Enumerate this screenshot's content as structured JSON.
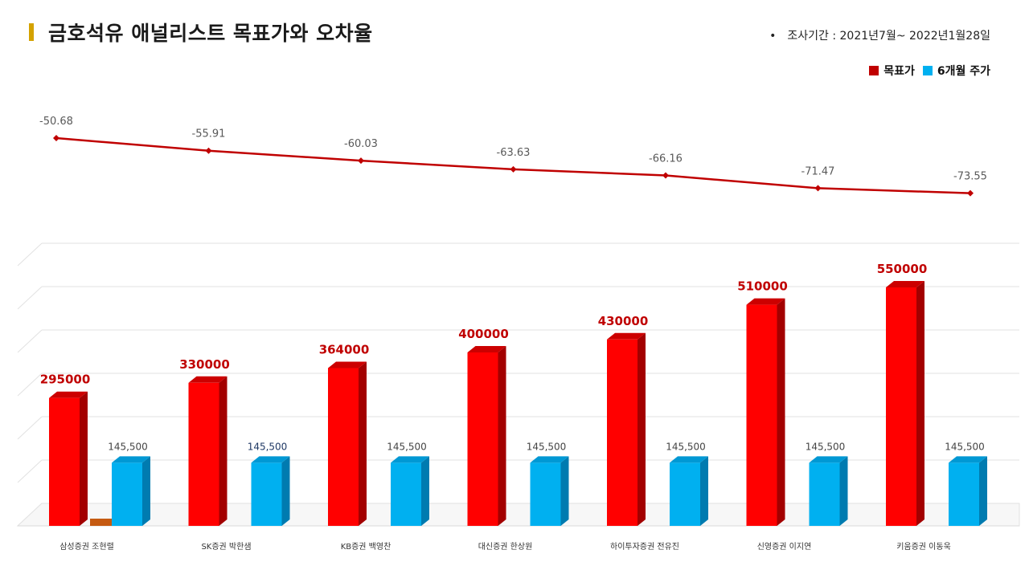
{
  "header": {
    "title": "금호석유 애널리스트 목표가와 오차율",
    "period": "조사기간 : 2021년7월~ 2022년1월28일",
    "legend": [
      {
        "label": "목표가",
        "color": "#c00000"
      },
      {
        "label": "6개월 주가",
        "color": "#00b0f0"
      }
    ]
  },
  "chart_data": [
    {
      "type": "line",
      "categories": [
        "삼성증권 조현렬",
        "SK증권 박한샘",
        "KB증권 백영찬",
        "대신증권 한상원",
        "하이투자증권 전유진",
        "신영증권 이지연",
        "키움증권 이동욱"
      ],
      "values": [
        -50.68,
        -55.91,
        -60.03,
        -63.63,
        -66.16,
        -71.47,
        -73.55
      ],
      "labels": [
        "-50.68",
        "-55.91",
        "-60.03",
        "-63.63",
        "-66.16",
        "-71.47",
        "-73.55"
      ],
      "color": "#c00000",
      "ylim": [
        -90,
        -30
      ]
    },
    {
      "type": "bar",
      "categories": [
        "삼성증권 조현렬",
        "SK증권 박한샘",
        "KB증권 백영찬",
        "대신증권 한상원",
        "하이투자증권 전유진",
        "신영증권 이지연",
        "키움증권 이동욱"
      ],
      "series": [
        {
          "name": "목표가",
          "values": [
            295000,
            330000,
            364000,
            400000,
            430000,
            510000,
            550000
          ],
          "labels": [
            "295000",
            "330000",
            "364000",
            "400000",
            "430000",
            "510000",
            "550000"
          ],
          "color": "#ff0000"
        },
        {
          "name": "6개월 주가",
          "values": [
            145500,
            145500,
            145500,
            145500,
            145500,
            145500,
            145500
          ],
          "labels": [
            "145,500",
            "145,500",
            "145,500",
            "145,500",
            "145,500",
            "145,500",
            "145,500"
          ],
          "color": "#00b0f0"
        }
      ],
      "ylim": [
        0,
        600000
      ],
      "grid": true
    }
  ]
}
